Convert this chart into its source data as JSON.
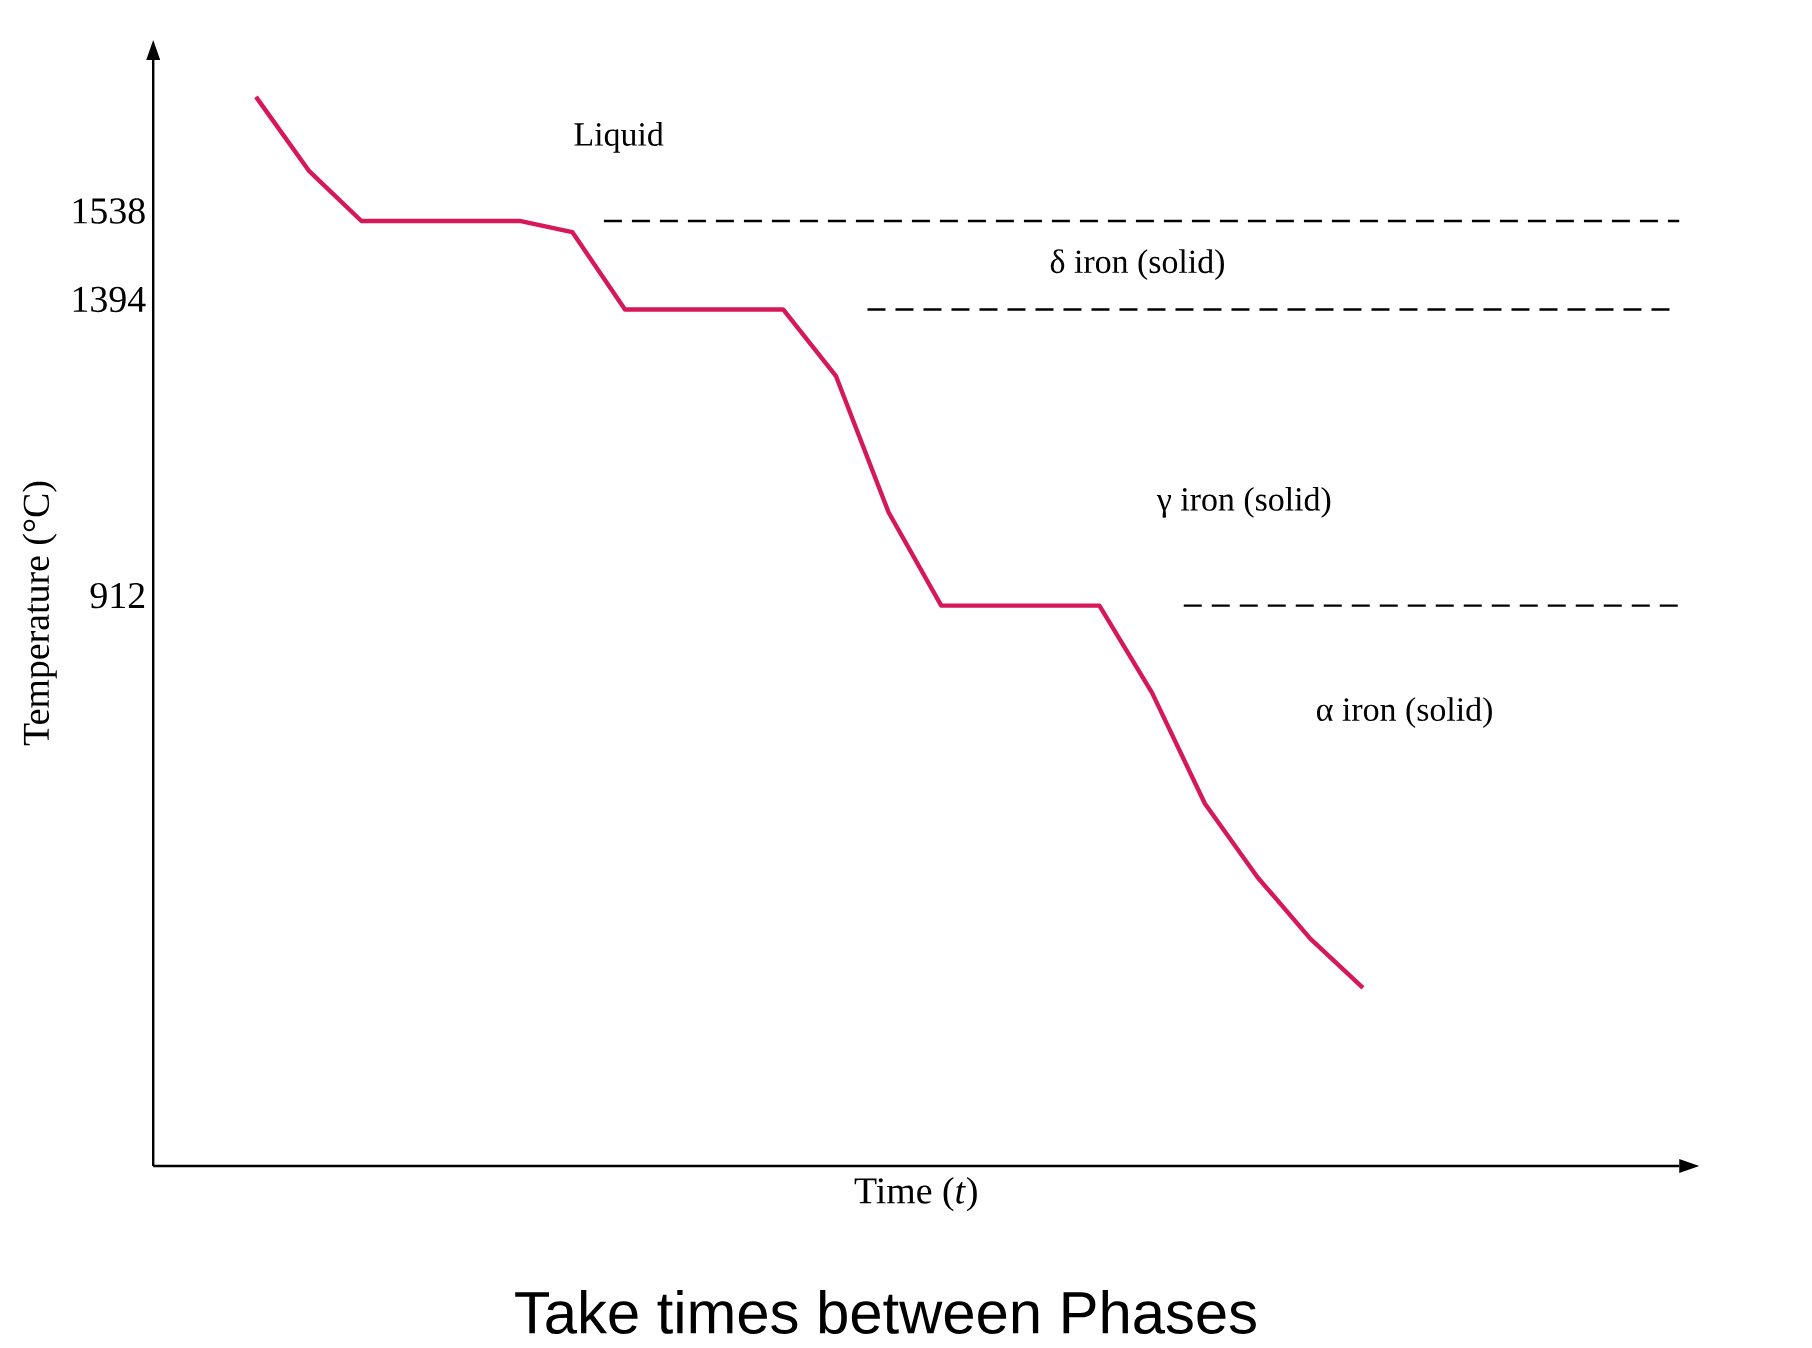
{
  "chart_data": {
    "type": "line",
    "xlabel": "Time (*t*)",
    "ylabel": "Temperature (°C)",
    "categories": [
      null,
      null,
      null,
      null,
      null,
      null,
      null,
      null,
      null,
      null,
      null,
      null,
      null,
      null,
      null,
      null,
      null,
      null,
      null,
      null,
      null,
      null
    ],
    "ylim": [
      0,
      1800
    ],
    "grid": false,
    "yticks": [
      912,
      1394,
      1538
    ],
    "tick_labels": "y",
    "marker": "none",
    "series": [
      {
        "color": "#d6175a",
        "line_style": "solid",
        "values": [
          1740,
          1620,
          1538,
          1538,
          1538,
          1538,
          1520,
          1394,
          1394,
          1394,
          1394,
          1286,
          1064,
          912,
          912,
          912,
          912,
          770,
          590,
          470,
          370,
          290
        ]
      }
    ],
    "ref_lines": [
      {
        "axis": "y",
        "value": 1538,
        "color": "#000000",
        "line_style": "dashed"
      },
      {
        "axis": "y",
        "value": 1394,
        "color": "#000000",
        "line_style": "dashed"
      },
      {
        "axis": "y",
        "value": 912,
        "color": "#000000",
        "line_style": "dashed"
      }
    ],
    "annotations": [
      "Liquid",
      "δ iron (solid)",
      "γ iron (solid)",
      "α iron (solid)",
      "Take times between Phases"
    ]
  }
}
